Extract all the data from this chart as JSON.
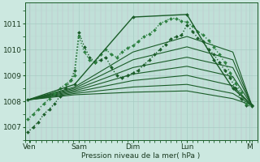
{
  "xlabel": "Pression niveau de la mer( hPa )",
  "background_color": "#cce8e0",
  "plot_bg_color": "#c0e0d8",
  "grid_color_major": "#a8ccc4",
  "grid_color_minor": "#b8d8d0",
  "line_color_dark": "#1a5c28",
  "line_color_medium": "#2d8040",
  "ylim": [
    1006.5,
    1011.8
  ],
  "xlim": [
    0.0,
    4.3
  ],
  "xtick_pos": [
    0.08,
    1.0,
    2.0,
    3.0,
    4.15
  ],
  "xtick_labels": [
    "Ven",
    "Sam",
    "Dim",
    "Lun",
    "M"
  ],
  "yticks": [
    1007,
    1008,
    1009,
    1010,
    1011
  ],
  "series": [
    {
      "x": [
        0.05,
        0.15,
        0.25,
        0.35,
        0.45,
        0.55,
        0.65,
        0.75,
        0.85,
        0.92,
        1.0,
        1.1,
        1.2,
        1.3,
        1.4,
        1.5,
        1.6,
        1.7,
        1.8,
        1.9,
        2.0,
        2.1,
        2.2,
        2.3,
        2.4,
        2.5,
        2.6,
        2.7,
        2.8,
        2.9,
        3.0,
        3.1,
        3.2,
        3.3,
        3.4,
        3.5,
        3.6,
        3.7,
        3.8,
        3.9,
        4.0,
        4.1,
        4.2
      ],
      "y": [
        1006.8,
        1007.0,
        1007.2,
        1007.5,
        1007.7,
        1007.9,
        1008.2,
        1008.5,
        1008.8,
        1009.2,
        1010.65,
        1010.1,
        1009.7,
        1009.5,
        1009.6,
        1009.7,
        1009.3,
        1009.0,
        1008.9,
        1009.0,
        1009.1,
        1009.2,
        1009.4,
        1009.6,
        1009.8,
        1010.0,
        1010.2,
        1010.4,
        1010.5,
        1010.55,
        1010.95,
        1010.7,
        1010.45,
        1010.3,
        1010.0,
        1009.8,
        1009.5,
        1009.2,
        1008.9,
        1008.5,
        1008.1,
        1007.85,
        1007.8
      ],
      "color": "#1a5c28",
      "lw": 1.0,
      "linestyle": ":",
      "marker": "D",
      "markersize": 2.0
    },
    {
      "x": [
        0.05,
        0.15,
        0.25,
        0.35,
        0.45,
        0.55,
        0.65,
        0.75,
        0.85,
        0.92,
        1.0,
        1.1,
        1.2,
        1.3,
        1.4,
        1.5,
        1.6,
        1.7,
        1.8,
        1.9,
        2.0,
        2.1,
        2.2,
        2.3,
        2.4,
        2.5,
        2.6,
        2.7,
        2.8,
        2.9,
        3.0,
        3.1,
        3.2,
        3.3,
        3.4,
        3.5,
        3.6,
        3.7,
        3.8,
        3.9,
        4.0,
        4.1,
        4.2
      ],
      "y": [
        1007.3,
        1007.5,
        1007.7,
        1007.9,
        1008.1,
        1008.3,
        1008.5,
        1008.65,
        1008.8,
        1009.0,
        1010.5,
        1009.9,
        1009.6,
        1009.5,
        1009.8,
        1010.0,
        1009.8,
        1009.7,
        1009.9,
        1010.05,
        1010.15,
        1010.3,
        1010.5,
        1010.6,
        1010.75,
        1011.0,
        1011.1,
        1011.2,
        1011.2,
        1011.1,
        1011.05,
        1010.9,
        1010.7,
        1010.55,
        1010.35,
        1010.1,
        1009.8,
        1009.5,
        1009.1,
        1008.7,
        1008.35,
        1007.9,
        1007.85
      ],
      "color": "#2d8040",
      "lw": 1.0,
      "linestyle": ":",
      "marker": "D",
      "markersize": 2.0
    },
    {
      "x": [
        0.05,
        0.92,
        2.0,
        3.0,
        3.5,
        3.85,
        4.2
      ],
      "y": [
        1008.05,
        1008.65,
        1011.25,
        1011.35,
        1009.6,
        1008.5,
        1007.85
      ],
      "color": "#1a5c28",
      "lw": 1.0,
      "linestyle": "-",
      "marker": "D",
      "markersize": 2.0
    },
    {
      "x": [
        0.05,
        0.92,
        2.0,
        3.0,
        3.85,
        4.2
      ],
      "y": [
        1008.05,
        1008.55,
        1009.9,
        1010.5,
        1009.9,
        1007.85
      ],
      "color": "#1a5c28",
      "lw": 0.8,
      "linestyle": "-",
      "marker": null,
      "markersize": 0
    },
    {
      "x": [
        0.05,
        0.92,
        2.0,
        3.0,
        3.85,
        4.2
      ],
      "y": [
        1008.05,
        1008.5,
        1009.6,
        1010.1,
        1009.6,
        1007.85
      ],
      "color": "#1a5c28",
      "lw": 0.8,
      "linestyle": "-",
      "marker": null,
      "markersize": 0
    },
    {
      "x": [
        0.05,
        0.92,
        2.0,
        3.0,
        3.85,
        4.2
      ],
      "y": [
        1008.05,
        1008.45,
        1009.3,
        1009.7,
        1009.3,
        1007.85
      ],
      "color": "#1a5c28",
      "lw": 0.8,
      "linestyle": "-",
      "marker": null,
      "markersize": 0
    },
    {
      "x": [
        0.05,
        0.92,
        2.0,
        3.0,
        3.85,
        4.2
      ],
      "y": [
        1008.05,
        1008.4,
        1009.05,
        1009.35,
        1008.95,
        1007.85
      ],
      "color": "#1a5c28",
      "lw": 0.8,
      "linestyle": "-",
      "marker": null,
      "markersize": 0
    },
    {
      "x": [
        0.05,
        0.92,
        2.0,
        3.0,
        3.85,
        4.2
      ],
      "y": [
        1008.05,
        1008.35,
        1008.8,
        1009.0,
        1008.6,
        1007.85
      ],
      "color": "#1a5c28",
      "lw": 0.8,
      "linestyle": "-",
      "marker": null,
      "markersize": 0
    },
    {
      "x": [
        0.05,
        0.92,
        2.0,
        3.0,
        3.85,
        4.2
      ],
      "y": [
        1008.05,
        1008.3,
        1008.55,
        1008.65,
        1008.3,
        1007.85
      ],
      "color": "#1a5c28",
      "lw": 0.8,
      "linestyle": "-",
      "marker": null,
      "markersize": 0
    },
    {
      "x": [
        0.05,
        0.92,
        2.0,
        3.0,
        3.85,
        4.2
      ],
      "y": [
        1008.05,
        1008.25,
        1008.35,
        1008.4,
        1008.1,
        1007.85
      ],
      "color": "#1a5c28",
      "lw": 0.8,
      "linestyle": "-",
      "marker": null,
      "markersize": 0
    }
  ]
}
